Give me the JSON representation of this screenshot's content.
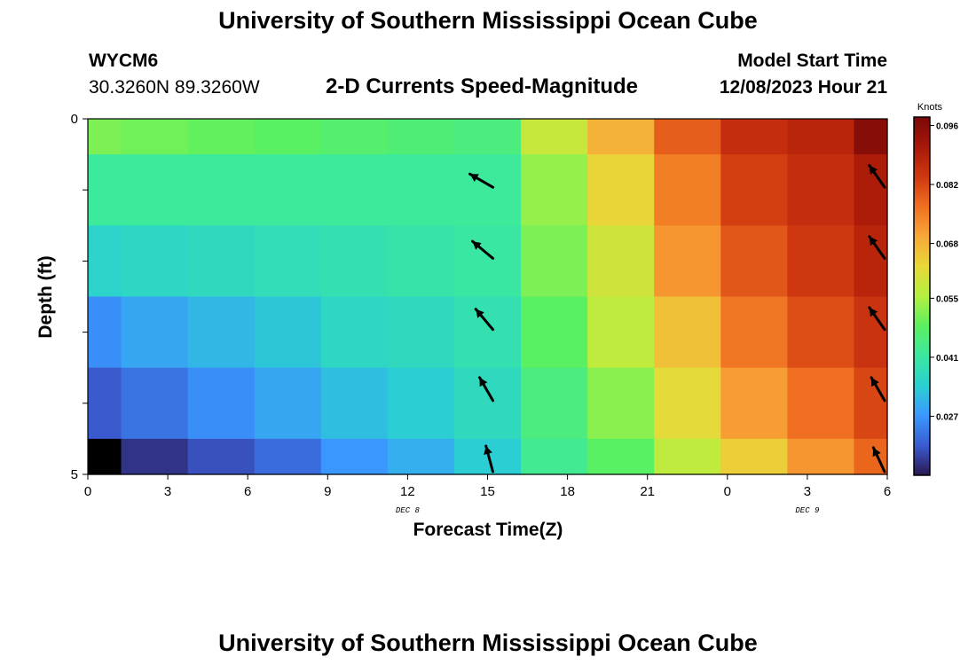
{
  "header": {
    "title_top": "University of Southern Mississippi Ocean Cube",
    "station_id": "WYCM6",
    "coords": "30.3260N  89.3260W",
    "subtitle": "2-D Currents Speed-Magnitude",
    "model_label": "Model Start Time",
    "model_time": "12/08/2023 Hour 21",
    "title_bottom": "University of Southern Mississippi Ocean Cube"
  },
  "chart_data": {
    "type": "heatmap",
    "title": "2-D Currents Speed-Magnitude",
    "xlabel": "Forecast Time(Z)",
    "ylabel": "Depth (ft)",
    "x_ticks": [
      "0",
      "3",
      "6",
      "9",
      "12",
      "15",
      "18",
      "21",
      "0",
      "3",
      "6"
    ],
    "x_tick_hours": [
      0,
      3,
      6,
      9,
      12,
      15,
      18,
      21,
      24,
      27,
      30
    ],
    "day_labels": [
      {
        "text": "DEC 8",
        "hour": 12
      },
      {
        "text": "DEC 9",
        "hour": 27
      }
    ],
    "y_ticks": [
      "0",
      "5"
    ],
    "xlim_hours": [
      0,
      30
    ],
    "ylim_ft": [
      0,
      5
    ],
    "column_start_hours": [
      0,
      1.25,
      3.75,
      6.25,
      8.75,
      11.25,
      13.75,
      16.25,
      18.75,
      21.25,
      23.75,
      26.25,
      28.75
    ],
    "column_end_hours": [
      1.25,
      3.75,
      6.25,
      8.75,
      11.25,
      13.75,
      16.25,
      18.75,
      21.25,
      23.75,
      26.25,
      28.75,
      30
    ],
    "row_top_ft": [
      0,
      0.5,
      1.5,
      2.5,
      3.5,
      4.5
    ],
    "row_bottom_ft": [
      0.5,
      1.5,
      2.5,
      3.5,
      4.5,
      5
    ],
    "speed_knots": [
      [
        0.051,
        0.05,
        0.049,
        0.048,
        0.047,
        0.046,
        0.045,
        0.058,
        0.068,
        0.079,
        0.086,
        0.088,
        0.096
      ],
      [
        0.042,
        0.042,
        0.042,
        0.042,
        0.042,
        0.042,
        0.042,
        0.053,
        0.063,
        0.075,
        0.083,
        0.086,
        0.09
      ],
      [
        0.035,
        0.036,
        0.037,
        0.038,
        0.039,
        0.04,
        0.041,
        0.051,
        0.059,
        0.072,
        0.08,
        0.084,
        0.088
      ],
      [
        0.026,
        0.029,
        0.031,
        0.033,
        0.036,
        0.037,
        0.039,
        0.048,
        0.057,
        0.066,
        0.076,
        0.081,
        0.085
      ],
      [
        0.02,
        0.023,
        0.026,
        0.029,
        0.032,
        0.034,
        0.037,
        0.045,
        0.052,
        0.062,
        0.071,
        0.077,
        0.082
      ],
      [
        0.008,
        0.016,
        0.019,
        0.022,
        0.027,
        0.03,
        0.034,
        0.043,
        0.048,
        0.057,
        0.064,
        0.072,
        0.078
      ]
    ],
    "vectors": [
      {
        "hour": 15,
        "depth_ft": 1.0,
        "direction_deg": 300
      },
      {
        "hour": 15,
        "depth_ft": 2.0,
        "direction_deg": 310
      },
      {
        "hour": 15,
        "depth_ft": 3.0,
        "direction_deg": 320
      },
      {
        "hour": 15,
        "depth_ft": 4.0,
        "direction_deg": 330
      },
      {
        "hour": 15,
        "depth_ft": 5.0,
        "direction_deg": 345
      },
      {
        "hour": 30,
        "depth_ft": 1.0,
        "direction_deg": 325
      },
      {
        "hour": 30,
        "depth_ft": 2.0,
        "direction_deg": 325
      },
      {
        "hour": 30,
        "depth_ft": 3.0,
        "direction_deg": 325
      },
      {
        "hour": 30,
        "depth_ft": 4.0,
        "direction_deg": 330
      },
      {
        "hour": 30,
        "depth_ft": 5.0,
        "direction_deg": 335
      }
    ],
    "colorbar": {
      "title": "Knots",
      "min": 0.013,
      "max": 0.098,
      "ticks": [
        "0.096",
        "0.082",
        "0.068",
        "0.055",
        "0.041",
        "0.027"
      ],
      "tick_values": [
        0.096,
        0.082,
        0.068,
        0.055,
        0.041,
        0.027
      ],
      "stops": [
        "#2a1850",
        "#3a5bd0",
        "#3a98ff",
        "#2ad0d0",
        "#3ae8a0",
        "#5cf060",
        "#b4f040",
        "#e8d838",
        "#f8a838",
        "#f07020",
        "#d03810",
        "#a81808",
        "#7a0808"
      ],
      "black_below": 0.01
    }
  }
}
